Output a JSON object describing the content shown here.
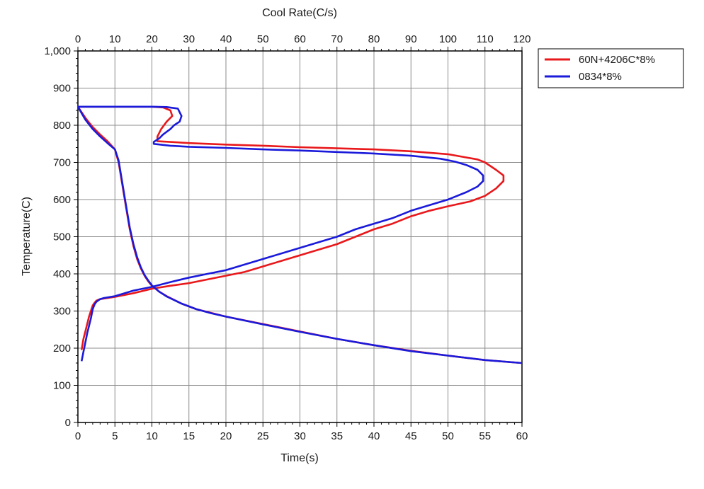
{
  "chart_data": {
    "type": "line",
    "title": "",
    "xlabel": "Time(s)",
    "x2label": "Cool Rate(C/s)",
    "ylabel": "Temperature(C)",
    "xlim": [
      0,
      60
    ],
    "x2lim": [
      0,
      120
    ],
    "ylim": [
      0,
      1000
    ],
    "grid": true,
    "legend_position": "top-right",
    "x_ticks": [
      {
        "value": 0,
        "label": "0"
      },
      {
        "value": 5,
        "label": "5"
      },
      {
        "value": 10,
        "label": "10"
      },
      {
        "value": 15,
        "label": "15"
      },
      {
        "value": 20,
        "label": "20"
      },
      {
        "value": 25,
        "label": "25"
      },
      {
        "value": 30,
        "label": "30"
      },
      {
        "value": 35,
        "label": "35"
      },
      {
        "value": 40,
        "label": "40"
      },
      {
        "value": 45,
        "label": "45"
      },
      {
        "value": 50,
        "label": "50"
      },
      {
        "value": 55,
        "label": "55"
      },
      {
        "value": 60,
        "label": "60"
      }
    ],
    "x2_ticks": [
      {
        "value": 0,
        "label": "0"
      },
      {
        "value": 10,
        "label": "10"
      },
      {
        "value": 20,
        "label": "20"
      },
      {
        "value": 30,
        "label": "30"
      },
      {
        "value": 40,
        "label": "40"
      },
      {
        "value": 50,
        "label": "50"
      },
      {
        "value": 60,
        "label": "60"
      },
      {
        "value": 70,
        "label": "70"
      },
      {
        "value": 80,
        "label": "80"
      },
      {
        "value": 90,
        "label": "90"
      },
      {
        "value": 100,
        "label": "100"
      },
      {
        "value": 110,
        "label": "110"
      },
      {
        "value": 120,
        "label": "120"
      }
    ],
    "y_ticks": [
      {
        "value": 0,
        "label": "0"
      },
      {
        "value": 100,
        "label": "100"
      },
      {
        "value": 200,
        "label": "200"
      },
      {
        "value": 300,
        "label": "300"
      },
      {
        "value": 400,
        "label": "400"
      },
      {
        "value": 500,
        "label": "500"
      },
      {
        "value": 600,
        "label": "600"
      },
      {
        "value": 700,
        "label": "700"
      },
      {
        "value": 800,
        "label": "800"
      },
      {
        "value": 900,
        "label": "900"
      },
      {
        "value": 1000,
        "label": "1,000"
      }
    ],
    "series": [
      {
        "name": "60N+4206C*8%",
        "color": "#e8181b",
        "time_temperature": {
          "x": [
            0,
            1,
            2,
            3,
            4,
            5,
            5.5,
            6,
            6.5,
            7,
            7.5,
            8,
            8.5,
            9,
            9.5,
            10,
            11,
            12,
            14,
            16,
            18,
            20,
            25,
            30,
            35,
            40,
            45,
            50,
            55,
            60
          ],
          "y": [
            850,
            820,
            795,
            775,
            757,
            735,
            700,
            640,
            580,
            520,
            475,
            440,
            415,
            395,
            380,
            368,
            352,
            340,
            320,
            305,
            295,
            285,
            265,
            245,
            225,
            208,
            193,
            180,
            168,
            160
          ]
        },
        "cool_rate_temperature": {
          "x": [
            0,
            10,
            20,
            23,
            25,
            25.5,
            24,
            22.5,
            21.5,
            21.5,
            25,
            30,
            40,
            50,
            60,
            70,
            80,
            90,
            100,
            104,
            108,
            110,
            113,
            115,
            115,
            113,
            110,
            106,
            100,
            95,
            90,
            85,
            80,
            75,
            70,
            65,
            60,
            55,
            50,
            45,
            40,
            35,
            30,
            25,
            20,
            15,
            10,
            8,
            6,
            5,
            4.5,
            4,
            3.5,
            3,
            2.5,
            2,
            1.5,
            1
          ],
          "y": [
            850,
            850,
            850,
            848,
            840,
            825,
            810,
            790,
            770,
            757,
            755,
            752,
            748,
            745,
            741,
            738,
            735,
            730,
            722,
            715,
            708,
            700,
            680,
            665,
            650,
            630,
            610,
            595,
            582,
            570,
            555,
            535,
            520,
            500,
            480,
            465,
            450,
            435,
            420,
            405,
            395,
            385,
            375,
            368,
            360,
            348,
            338,
            335,
            332,
            328,
            322,
            315,
            300,
            285,
            265,
            245,
            225,
            195
          ]
        }
      },
      {
        "name": "0834*8%",
        "color": "#1a1adb",
        "time_temperature": {
          "x": [
            0,
            1,
            2,
            3,
            4,
            5,
            5.5,
            6,
            6.5,
            7,
            7.5,
            8,
            8.5,
            9,
            9.5,
            10,
            11,
            12,
            14,
            16,
            18,
            20,
            25,
            30,
            35,
            40,
            45,
            50,
            55,
            60
          ],
          "y": [
            850,
            815,
            790,
            770,
            752,
            735,
            705,
            645,
            585,
            525,
            480,
            445,
            418,
            397,
            382,
            369,
            352,
            339,
            320,
            305,
            294,
            285,
            264,
            244,
            225,
            208,
            192,
            180,
            168,
            160
          ]
        },
        "cool_rate_temperature": {
          "x": [
            0,
            10,
            20,
            24,
            27,
            28,
            27.5,
            26,
            25,
            23,
            22,
            20.5,
            20.5,
            25,
            30,
            40,
            50,
            60,
            70,
            80,
            90,
            98,
            102,
            105,
            108,
            109.5,
            109.5,
            108,
            105,
            100,
            95,
            90,
            85,
            80,
            75,
            70,
            65,
            60,
            55,
            50,
            45,
            40,
            35,
            30,
            25,
            20,
            15,
            10,
            7,
            6,
            5,
            4.5,
            4,
            3.5,
            3,
            2.5,
            2,
            1.5,
            1
          ],
          "y": [
            850,
            850,
            850,
            849,
            845,
            825,
            810,
            800,
            790,
            775,
            765,
            755,
            750,
            745,
            742,
            739,
            735,
            732,
            728,
            724,
            718,
            710,
            702,
            693,
            680,
            665,
            650,
            635,
            620,
            600,
            585,
            570,
            550,
            535,
            520,
            500,
            485,
            470,
            455,
            440,
            425,
            410,
            400,
            390,
            378,
            365,
            355,
            340,
            335,
            332,
            325,
            318,
            305,
            280,
            260,
            240,
            215,
            190,
            165
          ]
        }
      }
    ]
  }
}
